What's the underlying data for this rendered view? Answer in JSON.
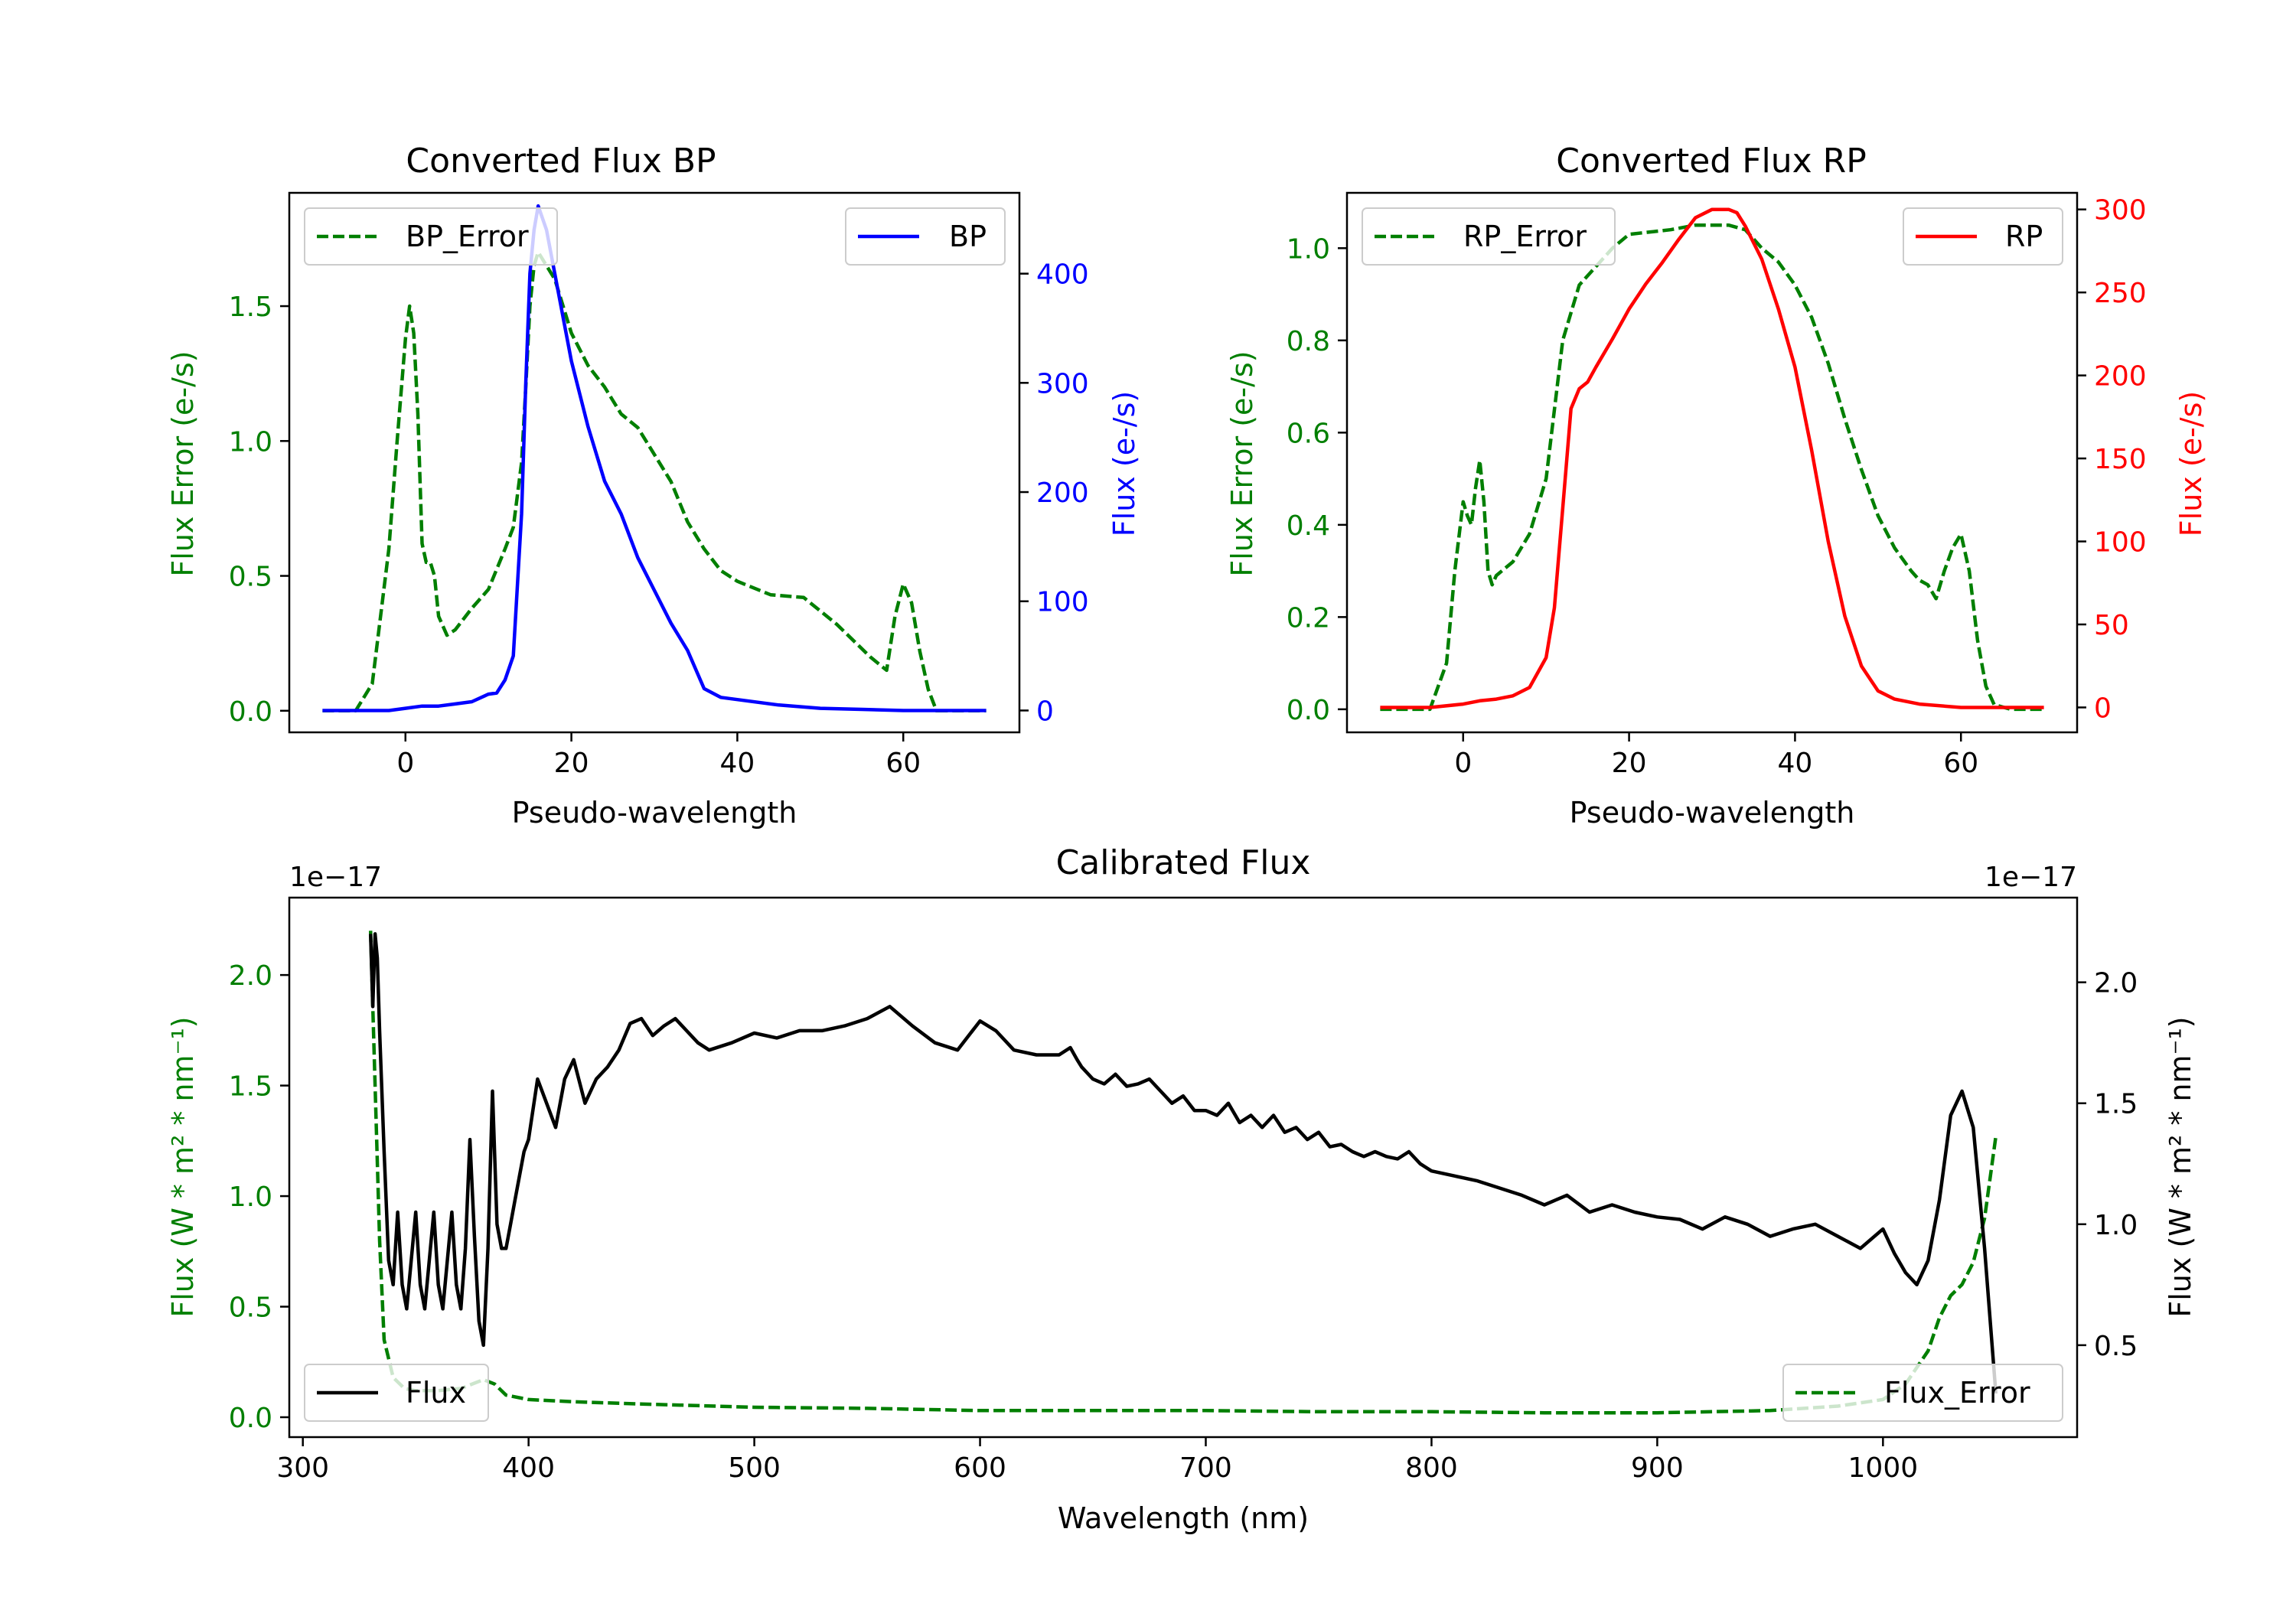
{
  "colors": {
    "error": "#007f00",
    "bp": "#0000ff",
    "rp": "#ff0000",
    "flux": "#000000",
    "axis": "#000000"
  },
  "chart_data": [
    {
      "id": "bp",
      "type": "line",
      "title": "Converted Flux BP",
      "xlabel": "Pseudo-wavelength",
      "ylabel_left": "Flux Error (e-/s)",
      "ylabel_right": "Flux (e-/s)",
      "xlim": [
        -14,
        74
      ],
      "ylim_left": [
        -0.08,
        1.92
      ],
      "ylim_right": [
        -20,
        474
      ],
      "xticks": [
        0,
        20,
        40,
        60
      ],
      "yticks_left": [
        0.0,
        0.5,
        1.0,
        1.5
      ],
      "yticks_right": [
        0,
        100,
        200,
        300,
        400
      ],
      "left_tick_color": "error",
      "right_tick_color": "bp",
      "series": [
        {
          "name": "BP_Error",
          "axis": "left",
          "style": "dashed",
          "color": "error",
          "x": [
            -10,
            -6,
            -4,
            -2,
            -1,
            0,
            0.5,
            1,
            1.5,
            2,
            2.5,
            3,
            3.5,
            4,
            5,
            6,
            8,
            10,
            12,
            13,
            14,
            14.5,
            15,
            15.5,
            16,
            17,
            18,
            20,
            22,
            24,
            26,
            28,
            30,
            32,
            34,
            36,
            38,
            40,
            44,
            48,
            52,
            56,
            58,
            59,
            60,
            61,
            62,
            63,
            64,
            66,
            70
          ],
          "y": [
            0,
            0,
            0.1,
            0.6,
            1.0,
            1.38,
            1.5,
            1.4,
            1.1,
            0.62,
            0.55,
            0.55,
            0.5,
            0.35,
            0.28,
            0.3,
            0.38,
            0.45,
            0.6,
            0.68,
            0.92,
            1.2,
            1.5,
            1.65,
            1.7,
            1.65,
            1.6,
            1.4,
            1.28,
            1.2,
            1.1,
            1.05,
            0.95,
            0.85,
            0.7,
            0.6,
            0.52,
            0.48,
            0.43,
            0.42,
            0.32,
            0.2,
            0.15,
            0.35,
            0.47,
            0.4,
            0.22,
            0.08,
            0,
            0,
            0
          ]
        },
        {
          "name": "BP",
          "axis": "right",
          "style": "solid",
          "color": "bp",
          "x": [
            -10,
            -2,
            0,
            2,
            4,
            6,
            8,
            10,
            11,
            12,
            13,
            14,
            14.5,
            15,
            15.5,
            16,
            17,
            18,
            20,
            22,
            24,
            26,
            28,
            30,
            32,
            34,
            36,
            38,
            40,
            45,
            50,
            55,
            60,
            70
          ],
          "y": [
            0,
            0,
            2,
            4,
            4,
            6,
            8,
            15,
            16,
            28,
            50,
            180,
            300,
            400,
            440,
            462,
            440,
            400,
            320,
            260,
            210,
            180,
            140,
            110,
            80,
            55,
            20,
            12,
            10,
            5,
            2,
            1,
            0,
            0
          ]
        }
      ],
      "legend": [
        {
          "label": "BP_Error",
          "position": "upper-left"
        },
        {
          "label": "BP",
          "position": "upper-right"
        }
      ]
    },
    {
      "id": "rp",
      "type": "line",
      "title": "Converted Flux RP",
      "xlabel": "Pseudo-wavelength",
      "ylabel_left": "Flux Error (e-/s)",
      "ylabel_right": "Flux (e-/s)",
      "xlim": [
        -14,
        74
      ],
      "ylim_left": [
        -0.05,
        1.12
      ],
      "ylim_right": [
        -15,
        310
      ],
      "xticks": [
        0,
        20,
        40,
        60
      ],
      "yticks_left": [
        0.0,
        0.2,
        0.4,
        0.6,
        0.8,
        1.0
      ],
      "yticks_right": [
        0,
        50,
        100,
        150,
        200,
        250,
        300
      ],
      "left_tick_color": "error",
      "right_tick_color": "rp",
      "series": [
        {
          "name": "RP_Error",
          "axis": "left",
          "style": "dashed",
          "color": "error",
          "x": [
            -10,
            -4,
            -2,
            -1,
            0,
            0.5,
            1,
            1.5,
            2,
            2.5,
            3,
            3.5,
            4,
            6,
            8,
            10,
            12,
            14,
            16,
            18,
            20,
            25,
            28,
            30,
            32,
            34,
            36,
            38,
            40,
            42,
            44,
            46,
            48,
            50,
            52,
            54,
            55,
            56,
            57,
            58,
            59,
            60,
            61,
            62,
            63,
            64,
            66,
            70
          ],
          "y": [
            0,
            0,
            0.1,
            0.3,
            0.45,
            0.42,
            0.4,
            0.48,
            0.54,
            0.45,
            0.3,
            0.27,
            0.29,
            0.32,
            0.38,
            0.5,
            0.8,
            0.92,
            0.96,
            1.0,
            1.03,
            1.04,
            1.05,
            1.05,
            1.05,
            1.04,
            1.0,
            0.97,
            0.92,
            0.85,
            0.75,
            0.63,
            0.52,
            0.42,
            0.35,
            0.3,
            0.28,
            0.27,
            0.24,
            0.3,
            0.35,
            0.38,
            0.3,
            0.15,
            0.05,
            0.01,
            0,
            0
          ]
        },
        {
          "name": "RP",
          "axis": "right",
          "style": "solid",
          "color": "rp",
          "x": [
            -10,
            -4,
            0,
            2,
            4,
            6,
            8,
            10,
            11,
            12,
            13,
            14,
            15,
            16,
            18,
            20,
            22,
            24,
            26,
            28,
            30,
            32,
            33,
            34,
            36,
            38,
            40,
            42,
            44,
            46,
            48,
            50,
            52,
            55,
            60,
            70
          ],
          "y": [
            0,
            0,
            2,
            4,
            5,
            7,
            12,
            30,
            60,
            120,
            180,
            192,
            196,
            205,
            222,
            240,
            255,
            268,
            282,
            295,
            300,
            300,
            298,
            290,
            270,
            240,
            205,
            155,
            100,
            55,
            25,
            10,
            5,
            2,
            0,
            0
          ]
        }
      ],
      "legend": [
        {
          "label": "RP_Error",
          "position": "upper-left"
        },
        {
          "label": "RP",
          "position": "upper-right"
        }
      ]
    },
    {
      "id": "calibrated",
      "type": "line",
      "title": "Calibrated Flux",
      "xlabel": "Wavelength (nm)",
      "ylabel_left": "Flux (W * m² * nm⁻¹)",
      "ylabel_right": "Flux (W * m² * nm⁻¹)",
      "offset_text_left": "1e−17",
      "offset_text_right": "1e−17",
      "xlim": [
        294,
        1086
      ],
      "ylim_left": [
        -0.09,
        2.35
      ],
      "ylim_right": [
        0.12,
        2.35
      ],
      "xticks": [
        300,
        400,
        500,
        600,
        700,
        800,
        900,
        1000
      ],
      "yticks_left": [
        0.0,
        0.5,
        1.0,
        1.5,
        2.0
      ],
      "yticks_left_labels": [
        "0.0",
        "0.5",
        "1.0",
        "1.5",
        "2.0"
      ],
      "yticks_right": [
        0.5,
        1.0,
        1.5,
        2.0
      ],
      "yticks_right_labels": [
        "0.5",
        "1.0",
        "1.5",
        "2.0"
      ],
      "left_tick_color": "error",
      "right_tick_color": "flux",
      "series": [
        {
          "name": "Flux_Error",
          "axis": "left",
          "style": "dashed",
          "color": "error",
          "x": [
            330,
            332,
            334,
            336,
            340,
            345,
            350,
            360,
            370,
            380,
            385,
            390,
            400,
            420,
            450,
            500,
            550,
            600,
            650,
            700,
            750,
            800,
            850,
            900,
            950,
            980,
            1000,
            1010,
            1020,
            1025,
            1030,
            1035,
            1040,
            1045,
            1050
          ],
          "y": [
            2.2,
            1.5,
            0.8,
            0.35,
            0.18,
            0.13,
            0.12,
            0.12,
            0.13,
            0.17,
            0.15,
            0.1,
            0.08,
            0.07,
            0.06,
            0.045,
            0.04,
            0.03,
            0.03,
            0.03,
            0.025,
            0.025,
            0.02,
            0.02,
            0.03,
            0.05,
            0.08,
            0.15,
            0.3,
            0.45,
            0.55,
            0.6,
            0.7,
            0.9,
            1.27
          ]
        },
        {
          "name": "Flux",
          "axis": "right",
          "style": "solid",
          "color": "flux",
          "x": [
            330,
            331,
            332,
            333,
            334,
            336,
            338,
            340,
            342,
            344,
            346,
            348,
            350,
            352,
            354,
            356,
            358,
            360,
            362,
            364,
            366,
            368,
            370,
            372,
            374,
            376,
            378,
            380,
            382,
            384,
            386,
            388,
            390,
            392,
            394,
            396,
            398,
            400,
            404,
            408,
            412,
            416,
            420,
            425,
            430,
            435,
            440,
            445,
            450,
            455,
            460,
            465,
            470,
            475,
            480,
            490,
            500,
            510,
            520,
            530,
            540,
            550,
            560,
            570,
            580,
            590,
            600,
            607,
            615,
            625,
            635,
            640,
            643,
            645,
            650,
            655,
            660,
            665,
            670,
            675,
            680,
            685,
            690,
            695,
            700,
            705,
            710,
            715,
            720,
            725,
            730,
            735,
            740,
            745,
            750,
            755,
            760,
            765,
            770,
            775,
            780,
            785,
            790,
            795,
            800,
            810,
            820,
            830,
            840,
            850,
            860,
            870,
            880,
            890,
            900,
            910,
            920,
            930,
            940,
            950,
            960,
            970,
            980,
            990,
            1000,
            1005,
            1010,
            1015,
            1020,
            1025,
            1030,
            1035,
            1040,
            1045,
            1050
          ],
          "y": [
            2.2,
            1.9,
            2.2,
            2.1,
            1.8,
            1.3,
            0.85,
            0.75,
            1.05,
            0.75,
            0.65,
            0.85,
            1.05,
            0.75,
            0.65,
            0.85,
            1.05,
            0.75,
            0.65,
            0.85,
            1.05,
            0.75,
            0.65,
            0.9,
            1.35,
            0.95,
            0.6,
            0.5,
            0.9,
            1.55,
            1.0,
            0.9,
            0.9,
            1.0,
            1.1,
            1.2,
            1.3,
            1.35,
            1.6,
            1.5,
            1.4,
            1.6,
            1.68,
            1.5,
            1.6,
            1.65,
            1.72,
            1.83,
            1.85,
            1.78,
            1.82,
            1.85,
            1.8,
            1.75,
            1.72,
            1.75,
            1.79,
            1.77,
            1.8,
            1.8,
            1.82,
            1.85,
            1.9,
            1.82,
            1.75,
            1.72,
            1.84,
            1.8,
            1.72,
            1.7,
            1.7,
            1.73,
            1.68,
            1.65,
            1.6,
            1.58,
            1.62,
            1.57,
            1.58,
            1.6,
            1.55,
            1.5,
            1.53,
            1.47,
            1.47,
            1.45,
            1.5,
            1.42,
            1.45,
            1.4,
            1.45,
            1.38,
            1.4,
            1.35,
            1.38,
            1.32,
            1.33,
            1.3,
            1.28,
            1.3,
            1.28,
            1.27,
            1.3,
            1.25,
            1.22,
            1.2,
            1.18,
            1.15,
            1.12,
            1.08,
            1.12,
            1.05,
            1.08,
            1.05,
            1.03,
            1.02,
            0.98,
            1.03,
            1.0,
            0.95,
            0.98,
            1.0,
            0.95,
            0.9,
            0.98,
            0.88,
            0.8,
            0.75,
            0.85,
            1.1,
            1.45,
            1.55,
            1.4,
            0.9,
            0.3
          ]
        }
      ],
      "legend": [
        {
          "label": "Flux",
          "position": "lower-left"
        },
        {
          "label": "Flux_Error",
          "position": "lower-right"
        }
      ]
    }
  ]
}
